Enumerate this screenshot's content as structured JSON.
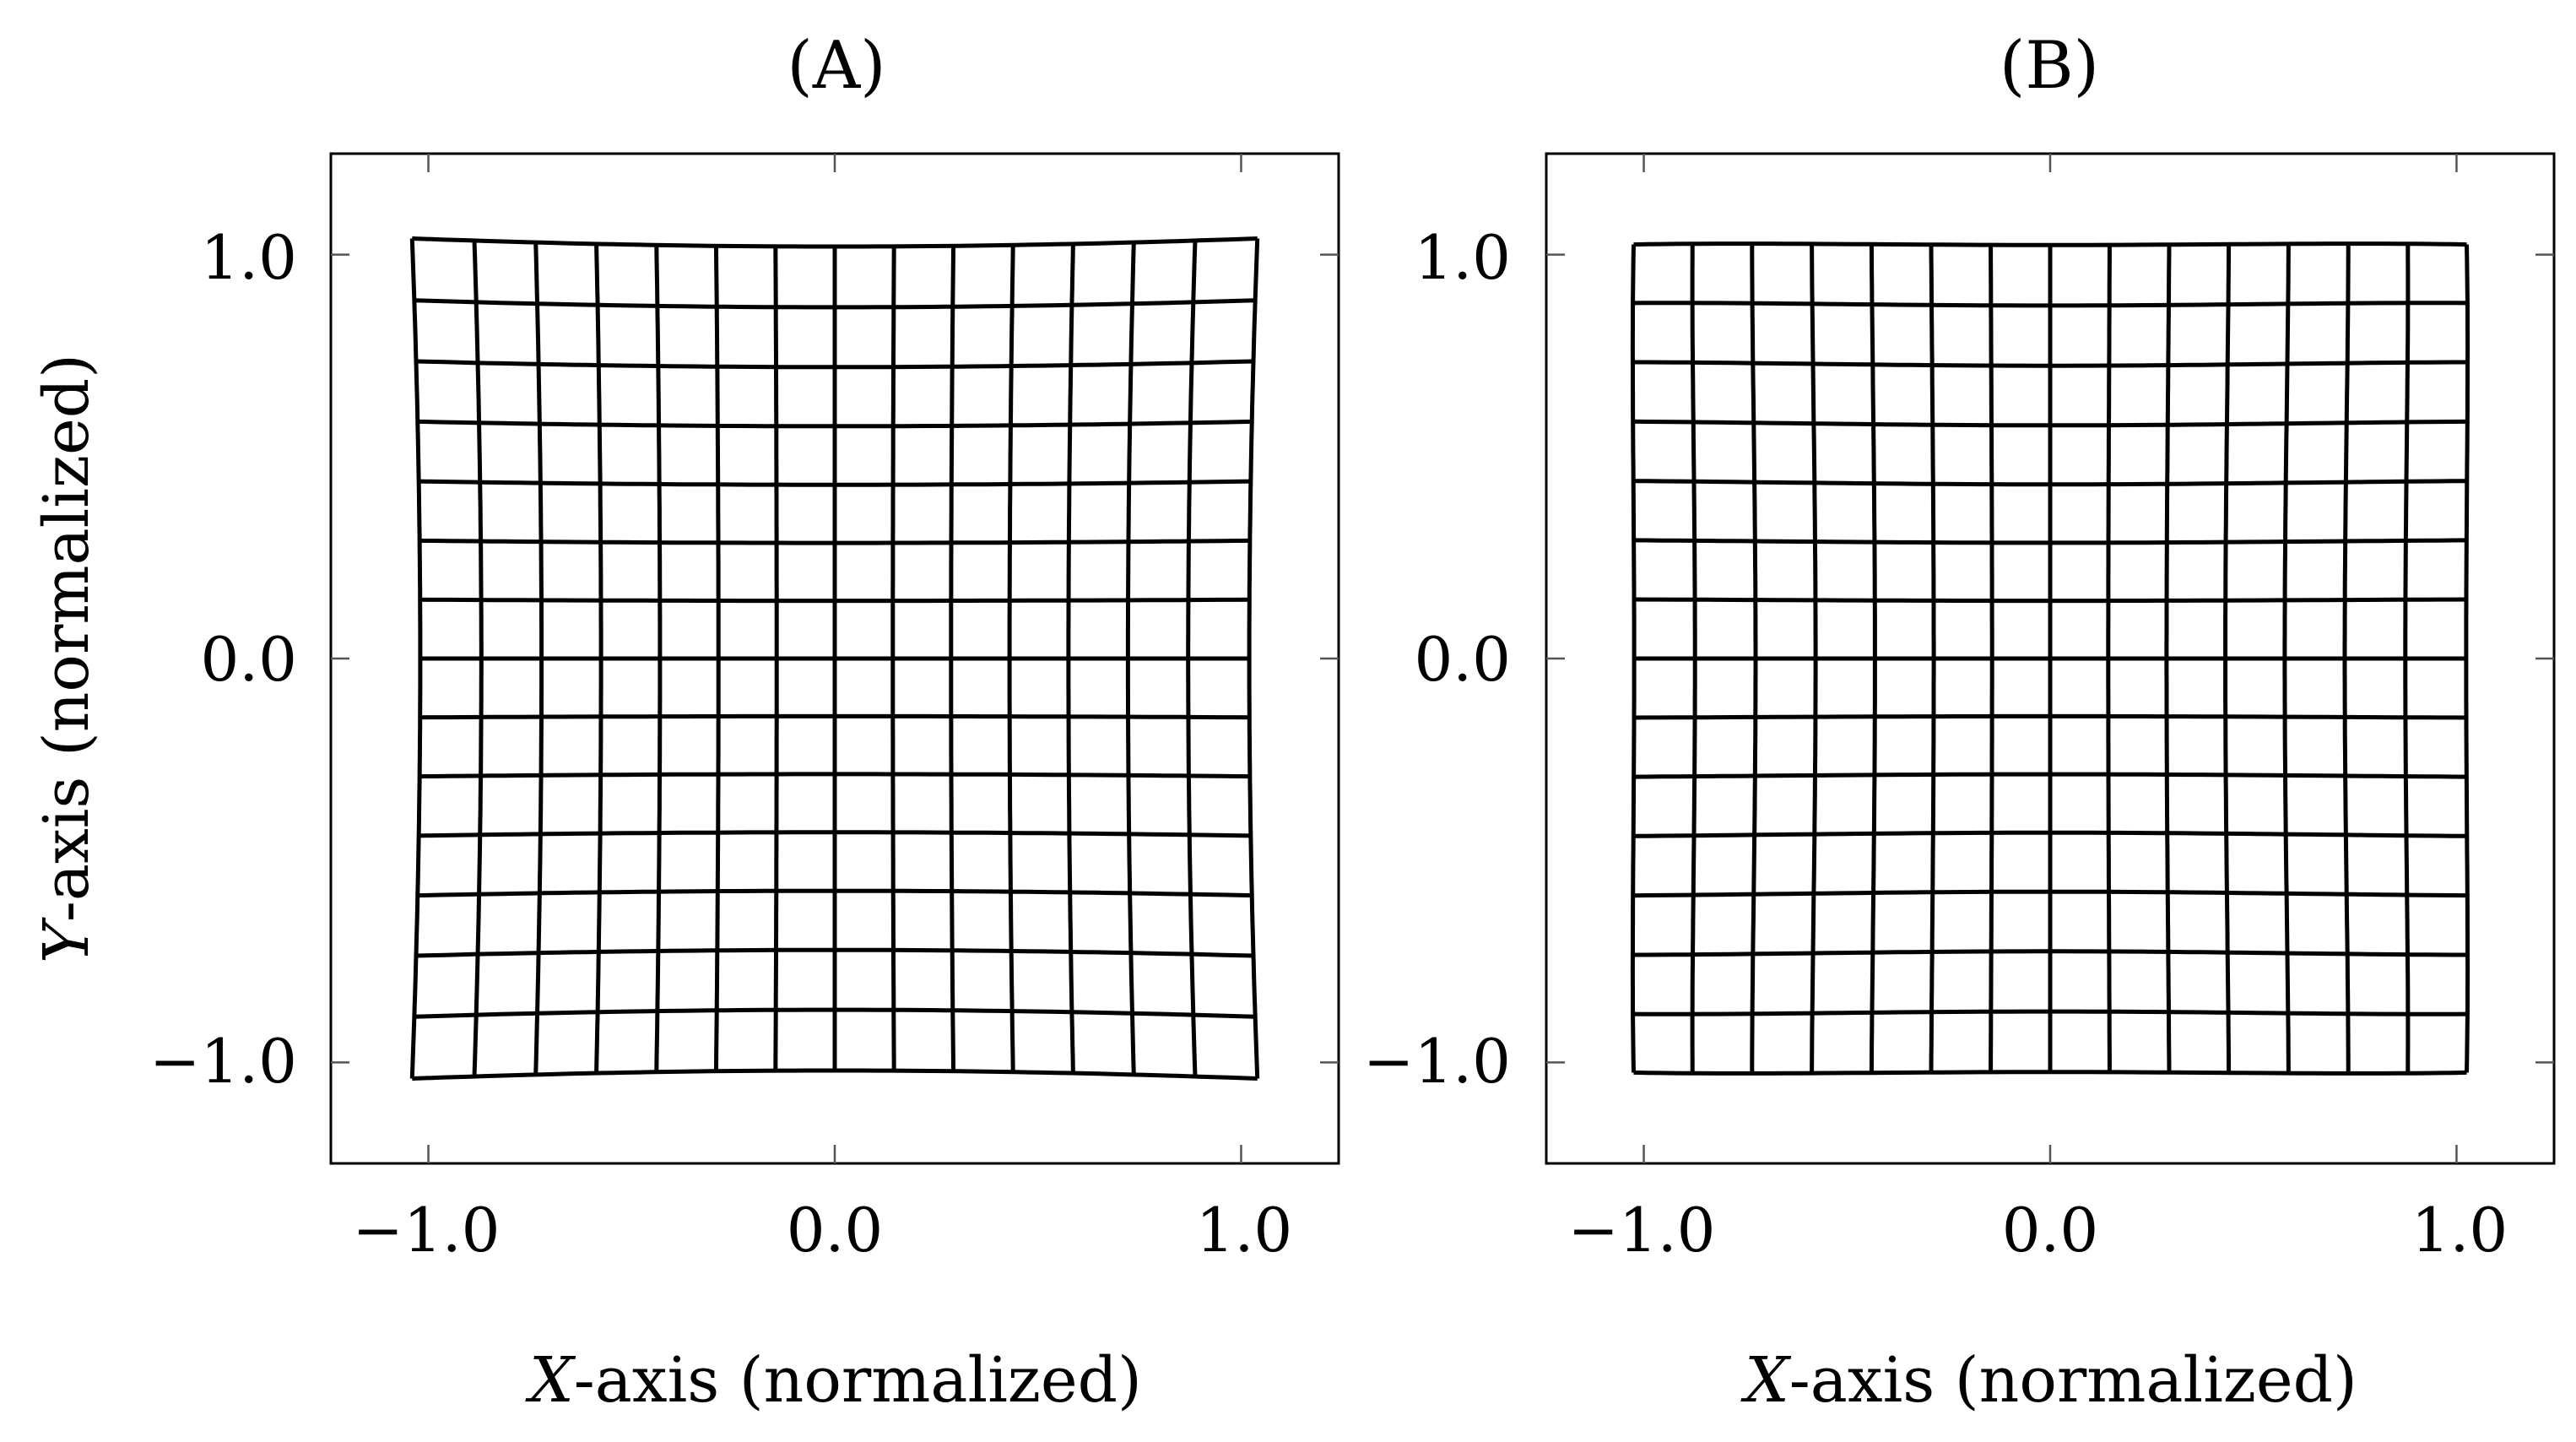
{
  "chart_data": [
    {
      "type": "line",
      "title": "(A)",
      "xlabel_italic": "X",
      "xlabel_rest": "-axis (normalized)",
      "ylabel_italic": "Y",
      "ylabel_rest": "-axis (normalized)",
      "xlim": [
        -1.24,
        1.24
      ],
      "ylim": [
        -1.25,
        1.25
      ],
      "xticks": [
        -1.0,
        0.0,
        1.0
      ],
      "xtick_labels": [
        "−1.0",
        "0.0",
        "1.0"
      ],
      "yticks": [
        -1.0,
        0.0,
        1.0
      ],
      "ytick_labels": [
        "−1.0",
        "0.0",
        "1.0"
      ],
      "grid_lines_per_direction": 15,
      "grid_extent": [
        -1.0,
        1.0
      ],
      "distortion": {
        "kind": "pincushion",
        "k": 0.04
      },
      "line_color": "#000000"
    },
    {
      "type": "line",
      "title": "(B)",
      "xlabel_italic": "X",
      "xlabel_rest": "-axis (normalized)",
      "xlim": [
        -1.24,
        1.24
      ],
      "ylim": [
        -1.25,
        1.25
      ],
      "xticks": [
        -1.0,
        0.0,
        1.0
      ],
      "xtick_labels": [
        "−1.0",
        "0.0",
        "1.0"
      ],
      "yticks": [
        -1.0,
        0.0,
        1.0
      ],
      "ytick_labels": [
        "−1.0",
        "0.0",
        "1.0"
      ],
      "grid_lines_per_direction": 15,
      "grid_extent": [
        -1.0,
        1.0
      ],
      "distortion": {
        "kind": "mustache",
        "k1": 0.07,
        "k2": -0.045
      },
      "line_color": "#000000"
    }
  ]
}
